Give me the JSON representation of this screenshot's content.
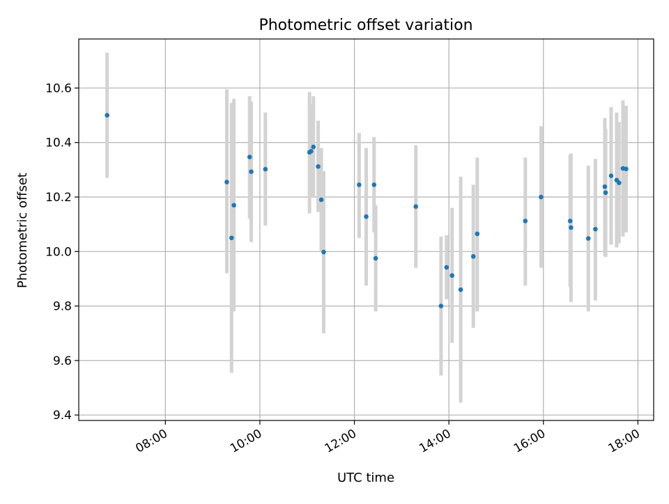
{
  "chart_data": {
    "type": "scatter",
    "title": "Photometric offset variation",
    "xlabel": "UTC time",
    "ylabel": "Photometric offset",
    "x_tick_labels": [
      "08:00",
      "10:00",
      "12:00",
      "14:00",
      "16:00",
      "18:00"
    ],
    "x_tick_hours": [
      8,
      10,
      12,
      14,
      16,
      18
    ],
    "y_tick_labels": [
      "9.4",
      "9.6",
      "9.8",
      "10.0",
      "10.2",
      "10.4",
      "10.6"
    ],
    "y_tick_values": [
      9.4,
      9.6,
      9.8,
      10.0,
      10.2,
      10.4,
      10.6
    ],
    "xlim": [
      "06:10",
      "18:20"
    ],
    "ylim": [
      9.38,
      10.78
    ],
    "grid": true,
    "colors": {
      "point": "#1f77b4",
      "errorbar": "#d3d3d3",
      "grid": "#b0b0b0"
    },
    "points": [
      {
        "x": "06:46",
        "y": 10.5,
        "lo": 10.27,
        "hi": 10.73
      },
      {
        "x": "09:18",
        "y": 10.255,
        "lo": 9.92,
        "hi": 10.595
      },
      {
        "x": "09:24",
        "y": 10.05,
        "lo": 9.555,
        "hi": 10.545
      },
      {
        "x": "09:27",
        "y": 10.17,
        "lo": 9.78,
        "hi": 10.56
      },
      {
        "x": "09:47",
        "y": 10.347,
        "lo": 10.12,
        "hi": 10.57
      },
      {
        "x": "09:49",
        "y": 10.293,
        "lo": 10.035,
        "hi": 10.55
      },
      {
        "x": "10:07",
        "y": 10.302,
        "lo": 10.095,
        "hi": 10.51
      },
      {
        "x": "11:03",
        "y": 10.364,
        "lo": 10.14,
        "hi": 10.585
      },
      {
        "x": "11:05",
        "y": 10.368,
        "lo": 10.2,
        "hi": 10.54
      },
      {
        "x": "11:08",
        "y": 10.384,
        "lo": 10.2,
        "hi": 10.57
      },
      {
        "x": "11:14",
        "y": 10.312,
        "lo": 10.145,
        "hi": 10.48
      },
      {
        "x": "11:18",
        "y": 10.19,
        "lo": 10.0,
        "hi": 10.38
      },
      {
        "x": "11:21",
        "y": 9.998,
        "lo": 9.7,
        "hi": 10.295
      },
      {
        "x": "12:06",
        "y": 10.245,
        "lo": 10.05,
        "hi": 10.435
      },
      {
        "x": "12:15",
        "y": 10.128,
        "lo": 9.875,
        "hi": 10.38
      },
      {
        "x": "12:25",
        "y": 10.245,
        "lo": 10.07,
        "hi": 10.42
      },
      {
        "x": "12:27",
        "y": 9.975,
        "lo": 9.78,
        "hi": 10.17
      },
      {
        "x": "13:18",
        "y": 10.165,
        "lo": 9.94,
        "hi": 10.39
      },
      {
        "x": "13:50",
        "y": 9.8,
        "lo": 9.545,
        "hi": 10.055
      },
      {
        "x": "13:57",
        "y": 9.942,
        "lo": 9.825,
        "hi": 10.06
      },
      {
        "x": "14:04",
        "y": 9.912,
        "lo": 9.665,
        "hi": 10.16
      },
      {
        "x": "14:15",
        "y": 9.86,
        "lo": 9.445,
        "hi": 10.275
      },
      {
        "x": "14:31",
        "y": 9.982,
        "lo": 9.72,
        "hi": 10.245
      },
      {
        "x": "14:36",
        "y": 10.065,
        "lo": 9.78,
        "hi": 10.345
      },
      {
        "x": "15:37",
        "y": 10.112,
        "lo": 9.875,
        "hi": 10.345
      },
      {
        "x": "15:57",
        "y": 10.2,
        "lo": 9.94,
        "hi": 10.46
      },
      {
        "x": "16:34",
        "y": 10.112,
        "lo": 9.87,
        "hi": 10.355
      },
      {
        "x": "16:35",
        "y": 10.088,
        "lo": 9.815,
        "hi": 10.36
      },
      {
        "x": "16:57",
        "y": 10.048,
        "lo": 9.78,
        "hi": 10.315
      },
      {
        "x": "17:06",
        "y": 10.082,
        "lo": 9.82,
        "hi": 10.34
      },
      {
        "x": "17:18",
        "y": 10.238,
        "lo": 9.985,
        "hi": 10.49
      },
      {
        "x": "17:19",
        "y": 10.216,
        "lo": 9.98,
        "hi": 10.45
      },
      {
        "x": "17:26",
        "y": 10.278,
        "lo": 10.025,
        "hi": 10.53
      },
      {
        "x": "17:33",
        "y": 10.262,
        "lo": 10.015,
        "hi": 10.51
      },
      {
        "x": "17:36",
        "y": 10.252,
        "lo": 10.03,
        "hi": 10.475
      },
      {
        "x": "17:41",
        "y": 10.305,
        "lo": 10.055,
        "hi": 10.555
      },
      {
        "x": "17:45",
        "y": 10.303,
        "lo": 10.07,
        "hi": 10.535
      }
    ]
  }
}
